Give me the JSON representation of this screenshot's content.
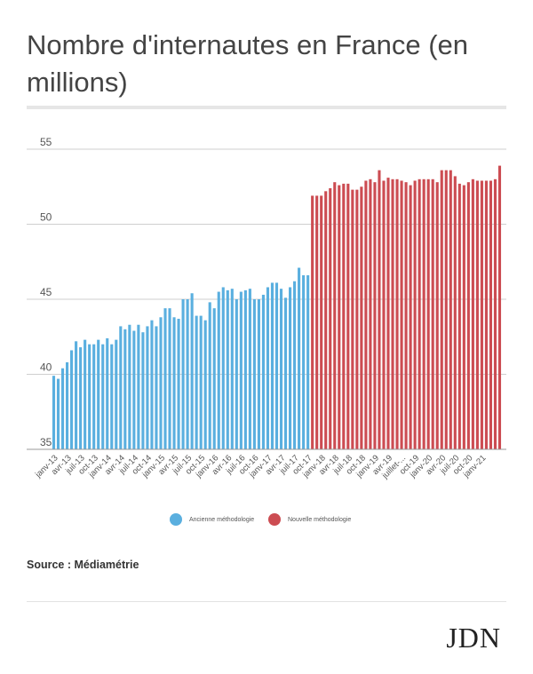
{
  "header": {
    "title": "Nombre d'internautes en France (en millions)"
  },
  "legend": {
    "items": [
      {
        "label": "Ancienne méthodologie",
        "color": "#5aafdf"
      },
      {
        "label": "Nouvelle méthodologie",
        "color": "#cc4c52"
      }
    ]
  },
  "footer": {
    "source": "Source : Médiamétrie",
    "logo": "JDN"
  },
  "chart_data": {
    "type": "bar",
    "title": "Nombre d'internautes en France (en millions)",
    "xlabel": "",
    "ylabel": "",
    "ylim": [
      35,
      55
    ],
    "yticks": [
      35,
      40,
      45,
      50,
      55
    ],
    "grid": true,
    "legend_position": "bottom",
    "x_tick_labels": [
      "janv-13",
      "avr-13",
      "juil-13",
      "oct-13",
      "janv-14",
      "avr-14",
      "juil-14",
      "oct-14",
      "janv-15",
      "avr-15",
      "juil-15",
      "oct-15",
      "janv-16",
      "avr-16",
      "juil-16",
      "oct-16",
      "janv-17",
      "avr-17",
      "juil-17",
      "oct-17",
      "janv-18",
      "avr-18",
      "juil-18",
      "oct-18",
      "janv-19",
      "avr-19",
      "juillet-...",
      "oct-19",
      "janv-20",
      "avr-20",
      "juil-20",
      "oct-20",
      "janv-21"
    ],
    "series": [
      {
        "name": "Ancienne méthodologie",
        "color": "#5aafdf",
        "values": [
          39.9,
          39.7,
          40.4,
          40.8,
          41.6,
          42.2,
          41.8,
          42.3,
          42.0,
          42.0,
          42.3,
          42.0,
          42.4,
          42.0,
          42.3,
          43.2,
          43.0,
          43.3,
          42.9,
          43.3,
          42.8,
          43.2,
          43.6,
          43.2,
          43.8,
          44.4,
          44.4,
          43.8,
          43.7,
          45.0,
          45.0,
          45.4,
          43.9,
          43.9,
          43.6,
          44.8,
          44.4,
          45.5,
          45.8,
          45.6,
          45.7,
          45.0,
          45.5,
          45.6,
          45.7,
          45.0,
          45.0,
          45.3,
          45.8,
          46.1,
          46.1,
          45.7,
          45.1,
          45.8,
          46.2,
          47.1,
          46.6,
          46.6
        ]
      },
      {
        "name": "Nouvelle méthodologie",
        "color": "#cc4c52",
        "values": [
          51.9,
          51.9,
          51.9,
          52.2,
          52.4,
          52.8,
          52.6,
          52.7,
          52.7,
          52.3,
          52.3,
          52.5,
          52.9,
          53.0,
          52.8,
          53.6,
          52.9,
          53.1,
          53.0,
          53.0,
          52.9,
          52.8,
          52.6,
          52.9,
          53.0,
          53.0,
          53.0,
          53.0,
          52.8,
          53.6,
          53.6,
          53.6,
          53.2,
          52.7,
          52.6,
          52.8,
          53.0,
          52.9,
          52.9,
          52.9,
          52.9,
          53.0,
          53.9
        ]
      }
    ]
  }
}
